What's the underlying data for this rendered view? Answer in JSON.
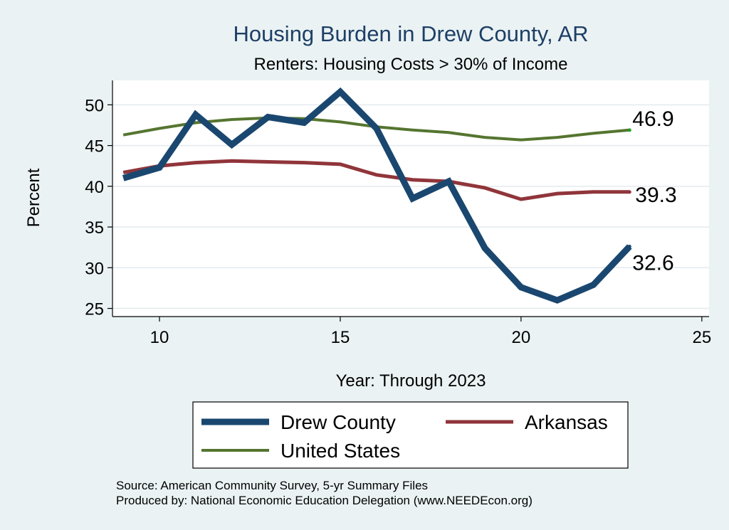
{
  "chart_data": {
    "type": "line",
    "title": "Housing Burden in Drew County, AR",
    "subtitle": "Renters: Housing Costs > 30% of Income",
    "xlabel": "Year: Through 2023",
    "ylabel": "Percent",
    "xlim": [
      8.7,
      25.2
    ],
    "ylim": [
      24,
      53
    ],
    "xticks": [
      10,
      15,
      20,
      25
    ],
    "yticks": [
      25,
      30,
      35,
      40,
      45,
      50
    ],
    "grid": true,
    "legend": "bottom",
    "series": [
      {
        "name": "Drew County",
        "color": "#1a476f",
        "width": 9,
        "x": [
          9,
          10,
          11,
          12,
          13,
          14,
          15,
          16,
          17,
          18,
          19,
          20,
          21,
          22,
          23
        ],
        "y": [
          41.0,
          42.3,
          48.8,
          45.1,
          48.5,
          47.8,
          51.6,
          47.1,
          38.5,
          40.6,
          32.4,
          27.6,
          26.0,
          27.9,
          32.6
        ],
        "end_label": "32.6"
      },
      {
        "name": "Arkansas",
        "color": "#90353b",
        "width": 5,
        "x": [
          9,
          10,
          11,
          12,
          13,
          14,
          15,
          16,
          17,
          18,
          19,
          20,
          21,
          22,
          23
        ],
        "y": [
          41.7,
          42.5,
          42.9,
          43.1,
          43.0,
          42.9,
          42.7,
          41.4,
          40.8,
          40.6,
          39.8,
          38.4,
          39.1,
          39.3,
          39.3
        ],
        "end_label": "39.3"
      },
      {
        "name": "United States",
        "color": "#55752f",
        "width": 4,
        "x": [
          9,
          10,
          11,
          12,
          13,
          14,
          15,
          16,
          17,
          18,
          19,
          20,
          21,
          22,
          23
        ],
        "y": [
          46.3,
          47.1,
          47.8,
          48.2,
          48.4,
          48.3,
          47.9,
          47.3,
          46.9,
          46.6,
          46.0,
          45.7,
          46.0,
          46.5,
          46.9
        ],
        "end_label": "46.9"
      }
    ],
    "legend_entries": [
      "Drew County",
      "Arkansas",
      "United States"
    ]
  },
  "source_note": "Source: American Community Survey, 5-yr Summary Files",
  "produced_note": "Produced by: National Economic Education Delegation (www.NEEDEcon.org)"
}
